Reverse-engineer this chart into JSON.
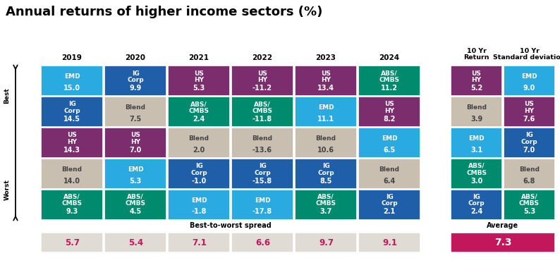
{
  "title": "Annual returns of higher income sectors (%)",
  "colors": {
    "EMD": "#29ABE2",
    "IG Corp": "#1F5EA8",
    "US HY": "#7B2D6E",
    "Blend": "#C8BFB0",
    "ABS/CMBS": "#008B6E"
  },
  "years": [
    "2019",
    "2020",
    "2021",
    "2022",
    "2023",
    "2024"
  ],
  "annual_data": [
    [
      {
        "label": "EMD",
        "value": "15.0"
      },
      {
        "label": "IG Corp",
        "value": "14.5"
      },
      {
        "label": "US HY",
        "value": "14.3"
      },
      {
        "label": "Blend",
        "value": "14.0"
      },
      {
        "label": "ABS/CMBS",
        "value": "9.3"
      }
    ],
    [
      {
        "label": "IG Corp",
        "value": "9.9"
      },
      {
        "label": "Blend",
        "value": "7.5"
      },
      {
        "label": "US HY",
        "value": "7.0"
      },
      {
        "label": "EMD",
        "value": "5.3"
      },
      {
        "label": "ABS/CMBS",
        "value": "4.5"
      }
    ],
    [
      {
        "label": "US HY",
        "value": "5.3"
      },
      {
        "label": "ABS/CMBS",
        "value": "2.4"
      },
      {
        "label": "Blend",
        "value": "2.0"
      },
      {
        "label": "IG Corp",
        "value": "-1.0"
      },
      {
        "label": "EMD",
        "value": "-1.8"
      }
    ],
    [
      {
        "label": "US HY",
        "value": "-11.2"
      },
      {
        "label": "ABS/CMBS",
        "value": "-11.8"
      },
      {
        "label": "Blend",
        "value": "-13.6"
      },
      {
        "label": "IG Corp",
        "value": "-15.8"
      },
      {
        "label": "EMD",
        "value": "-17.8"
      }
    ],
    [
      {
        "label": "US HY",
        "value": "13.4"
      },
      {
        "label": "EMD",
        "value": "11.1"
      },
      {
        "label": "Blend",
        "value": "10.6"
      },
      {
        "label": "IG Corp",
        "value": "8.5"
      },
      {
        "label": "ABS/CMBS",
        "value": "3.7"
      }
    ],
    [
      {
        "label": "ABS/CMBS",
        "value": "11.2"
      },
      {
        "label": "US HY",
        "value": "8.2"
      },
      {
        "label": "EMD",
        "value": "6.5"
      },
      {
        "label": "Blend",
        "value": "6.4"
      },
      {
        "label": "IG Corp",
        "value": "2.1"
      }
    ]
  ],
  "spread": [
    "5.7",
    "5.4",
    "7.1",
    "6.6",
    "9.7",
    "9.1"
  ],
  "ten_yr_return": [
    {
      "label": "US HY",
      "value": "5.2"
    },
    {
      "label": "Blend",
      "value": "3.9"
    },
    {
      "label": "EMD",
      "value": "3.1"
    },
    {
      "label": "ABS/CMBS",
      "value": "3.0"
    },
    {
      "label": "IG Corp",
      "value": "2.4"
    }
  ],
  "ten_yr_std": [
    {
      "label": "EMD",
      "value": "9.0"
    },
    {
      "label": "US HY",
      "value": "7.6"
    },
    {
      "label": "IG Corp",
      "value": "7.0"
    },
    {
      "label": "Blend",
      "value": "6.8"
    },
    {
      "label": "ABS/CMBS",
      "value": "5.3"
    }
  ],
  "average": "7.3",
  "spread_bg": "#E0DBD5",
  "average_bg": "#C2185B",
  "magenta": "#C2185B",
  "title_fontsize": 13,
  "cell_label_fontsize": 6.5,
  "cell_value_fontsize": 7.0,
  "year_fontsize": 7.5,
  "spread_fontsize": 8.5,
  "avg_fontsize": 10,
  "header_fontsize": 6.8
}
